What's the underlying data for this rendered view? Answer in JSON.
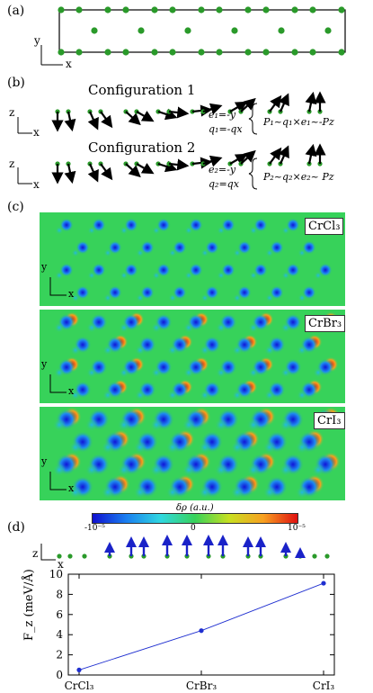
{
  "panels": {
    "a": "(a)",
    "b": "(b)",
    "c": "(c)",
    "d": "(d)"
  },
  "axes": {
    "x": "x",
    "y": "y",
    "z": "z"
  },
  "configs": {
    "c1": {
      "title": "Configuration 1",
      "eq_e": "e₁=-y",
      "eq_q": "q₁=-qx",
      "eq_p": "P₁~q₁×e₁~-Pz"
    },
    "c2": {
      "title": "Configuration 2",
      "eq_e": "e₂=-y",
      "eq_q": "q₂=qx",
      "eq_p": "P₂~q₂×e₂~ Pz"
    }
  },
  "materials": [
    "CrCl₃",
    "CrBr₃",
    "CrI₃"
  ],
  "colorbar": {
    "label": "δρ (a.u.)",
    "min": "-10⁻⁵",
    "mid": "0",
    "max": "10⁻⁵"
  },
  "chart_data": {
    "type": "line",
    "categories": [
      "CrCl₃",
      "CrBr₃",
      "CrI₃"
    ],
    "values": [
      0.5,
      4.4,
      9.1
    ],
    "ylabel": "F_z (meV/Å)",
    "ylim": [
      0,
      10
    ],
    "yticks": [
      0,
      2,
      4,
      6,
      8,
      10
    ],
    "color": "#1f2fd0"
  }
}
